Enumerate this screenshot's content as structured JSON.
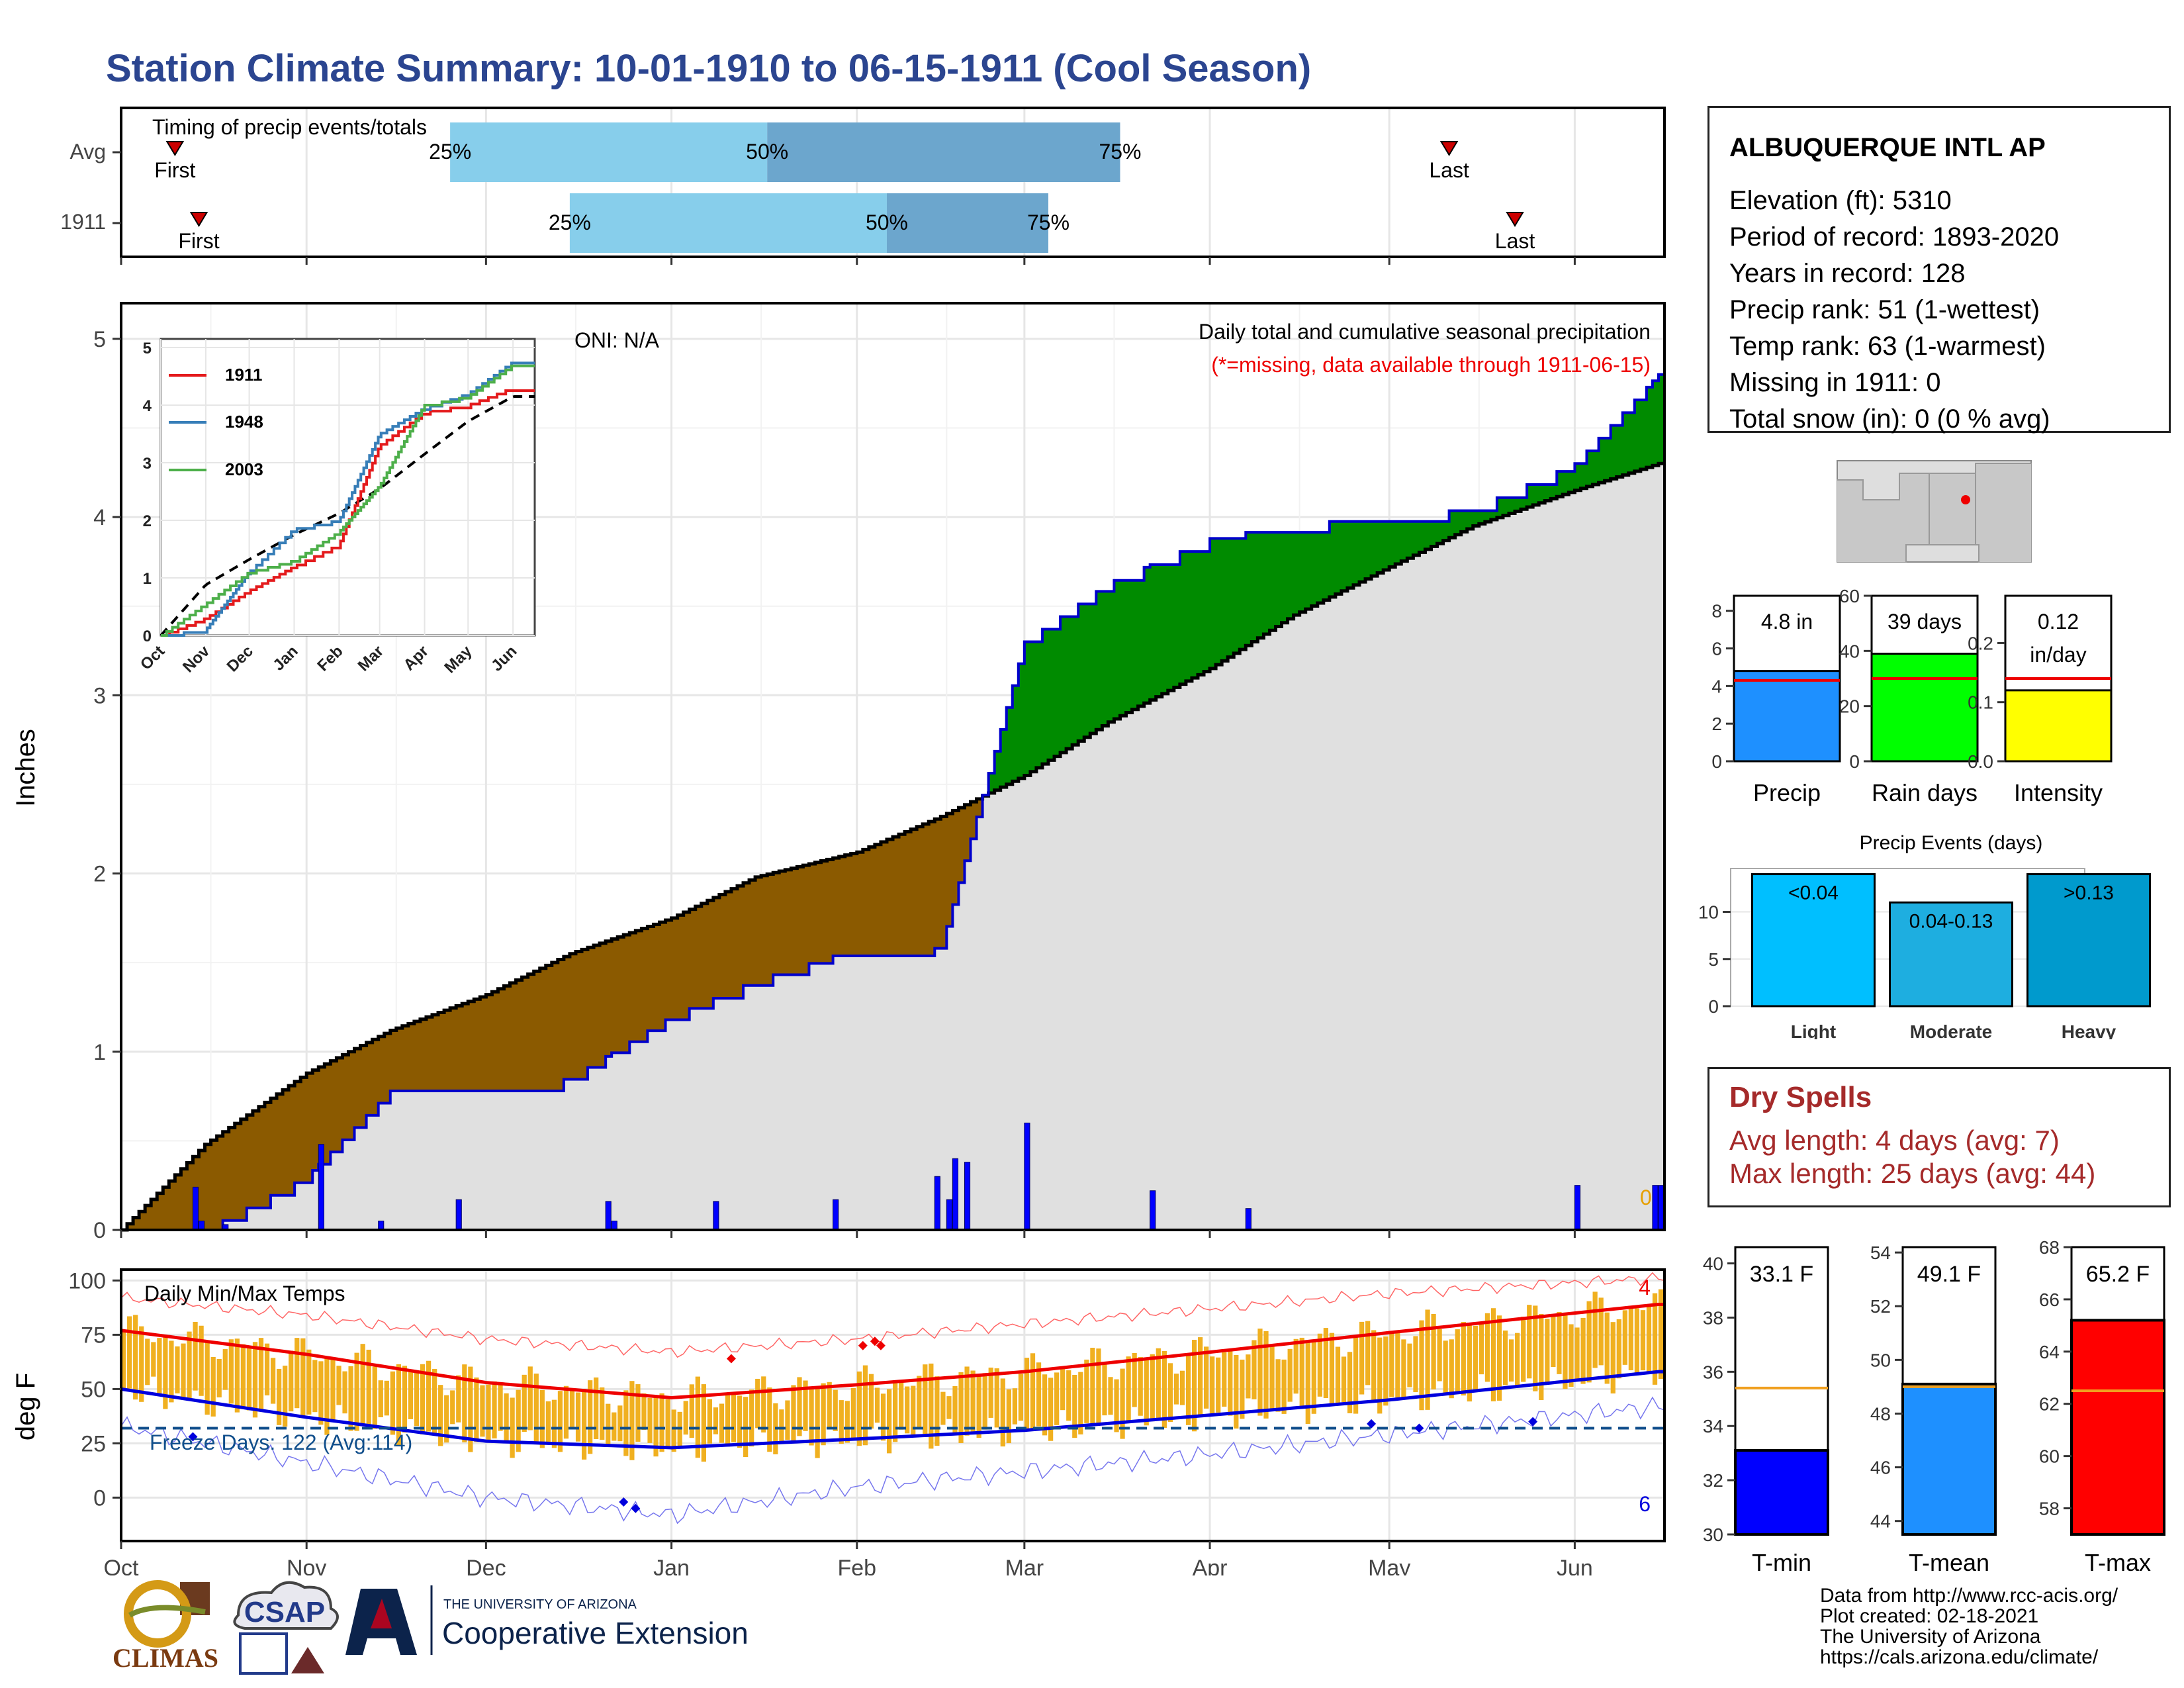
{
  "title": "Station Climate Summary: 10-01-1910 to 06-15-1911 (Cool Season)",
  "timing": {
    "title": "Timing of precip events/totals",
    "rows": [
      {
        "label": "Avg",
        "first_label": "First",
        "last_label": "Last",
        "p25": "25%",
        "p50": "50%",
        "p75": "75%",
        "first_day": 9,
        "p25_day": 55,
        "p50_day": 108,
        "p75_day": 167,
        "last_day": 222
      },
      {
        "label": "1911",
        "first_label": "First",
        "last_label": "Last",
        "p25": "25%",
        "p50": "50%",
        "p75": "75%",
        "first_day": 13,
        "p25_day": 75,
        "p50_day": 128,
        "p75_day": 155,
        "last_day": 233
      }
    ],
    "colors": {
      "light": "#87ceeb",
      "dark": "#6ca6cd",
      "marker": "#cc0000"
    }
  },
  "precip": {
    "ylabel": "Inches",
    "oni": "ONI: N/A",
    "caption": "Daily total and cumulative seasonal precipitation",
    "missing_note": "(*=missing, data available through 1911-06-15)",
    "missing_count": "0",
    "colors": {
      "deficit": "#8b5a00",
      "surplus": "#008b00",
      "normal_fill": "#e0e0e0",
      "obs_line": "#0000cc",
      "bars": "#0000ff"
    }
  },
  "inset": {
    "legend": [
      {
        "name": "1911",
        "color": "#e41a1c"
      },
      {
        "name": "1948",
        "color": "#377eb8"
      },
      {
        "name": "2003",
        "color": "#4daf4a"
      }
    ]
  },
  "temps": {
    "title": "Daily Min/Max Temps",
    "ylabel": "deg F",
    "freeze_text": "Freeze Days: 122 (Avg:114)",
    "record_high_count": "4",
    "record_low_count": "6",
    "freeze_threshold": 32
  },
  "months": [
    "Oct",
    "Nov",
    "Dec",
    "Jan",
    "Feb",
    "Mar",
    "Apr",
    "May",
    "Jun"
  ],
  "station": {
    "name": "ALBUQUERQUE INTL AP",
    "lines": [
      "Elevation (ft): 5310",
      "Period of record: 1893-2020",
      "Years in record: 128",
      "Precip rank: 51 (1-wettest)",
      "Temp rank: 63 (1-warmest)",
      "Missing in 1911: 0",
      "Total snow (in): 0 (0 % avg)"
    ]
  },
  "mini_charts": {
    "precip": {
      "xlabel": "Precip",
      "value_label": "4.8 in",
      "value": 4.8,
      "avg": 4.3,
      "ylim": [
        0,
        8.8
      ],
      "ticks": [
        0,
        2,
        4,
        6,
        8
      ],
      "color": "#1e90ff"
    },
    "rain_days": {
      "xlabel": "Rain days",
      "value_label": "39 days",
      "value": 39,
      "avg": 30,
      "ylim": [
        0,
        60
      ],
      "ticks": [
        0,
        20,
        40,
        60
      ],
      "color": "#00ff00"
    },
    "intensity": {
      "xlabel": "Intensity",
      "value_label": "0.12",
      "value_label2": "in/day",
      "value": 0.12,
      "avg": 0.14,
      "ylim": [
        0,
        0.28
      ],
      "ticks": [
        "0.0",
        "0.1",
        "0.2"
      ],
      "color": "#ffff00"
    }
  },
  "events": {
    "title": "Precip Events (days)",
    "bars": [
      {
        "name": "Light",
        "label": "<0.04",
        "value": 14,
        "color": "#00bfff"
      },
      {
        "name": "Moderate",
        "label": "0.04-0.13",
        "value": 11,
        "color": "#1eaee0"
      },
      {
        "name": "Heavy",
        "label": ">0.13",
        "value": 14,
        "color": "#009acd"
      }
    ],
    "ticks": [
      0,
      5,
      10
    ]
  },
  "dry_spells": {
    "title": "Dry Spells",
    "avg_line": "Avg length: 4 days (avg: 7)",
    "max_line": "Max length: 25 days (avg: 44)"
  },
  "temp_bars": [
    {
      "xlabel": "T-min",
      "value_label": "33.1 F",
      "value": 33.1,
      "avg": 35.4,
      "ylim": [
        30,
        40.6
      ],
      "ticks": [
        30,
        32,
        34,
        36,
        38,
        40
      ],
      "color": "#0000ff"
    },
    {
      "xlabel": "T-mean",
      "value_label": "49.1 F",
      "value": 49.1,
      "avg": 49.0,
      "ylim": [
        43.5,
        54.2
      ],
      "ticks": [
        44,
        46,
        48,
        50,
        52,
        54
      ],
      "color": "#1e90ff"
    },
    {
      "xlabel": "T-max",
      "value_label": "65.2 F",
      "value": 65.2,
      "avg": 62.5,
      "ylim": [
        57,
        68
      ],
      "ticks": [
        58,
        60,
        62,
        64,
        66,
        68
      ],
      "color": "#ff0000"
    }
  ],
  "logos": {
    "climas": "CLIMAS",
    "csap": "CSAP",
    "ua_small": "THE UNIVERSITY OF ARIZONA",
    "ua_big": "Cooperative Extension"
  },
  "credits": [
    "Data from http://www.rcc-acis.org/",
    "Plot created: 02-18-2021",
    "The University of Arizona",
    "https://cals.arizona.edu/climate/"
  ],
  "chart_data": [
    {
      "type": "bar",
      "title": "Timing of precip events/totals",
      "categories": [
        "Avg",
        "1911"
      ],
      "series": [
        {
          "name": "First",
          "values": [
            "Oct 10",
            "Oct 14"
          ]
        },
        {
          "name": "25%",
          "values": [
            "Nov 25",
            "Dec 15"
          ]
        },
        {
          "name": "50%",
          "values": [
            "Jan 17",
            "Feb 6"
          ]
        },
        {
          "name": "75%",
          "values": [
            "Mar 17",
            "Mar 5"
          ]
        },
        {
          "name": "Last",
          "values": [
            "May 12",
            "Jun 13"
          ]
        }
      ]
    },
    {
      "type": "area",
      "title": "Daily total and cumulative seasonal precipitation",
      "ylabel": "Inches",
      "ylim": [
        0,
        5.2
      ],
      "x": [
        "Oct 1",
        "Oct 15",
        "Nov 1",
        "Nov 15",
        "Dec 1",
        "Dec 15",
        "Jan 1",
        "Jan 15",
        "Feb 1",
        "Feb 15",
        "Mar 1",
        "Mar 15",
        "Apr 1",
        "Apr 15",
        "May 1",
        "May 15",
        "Jun 1",
        "Jun 15"
      ],
      "series": [
        {
          "name": "normal",
          "values": [
            0.0,
            0.48,
            0.88,
            1.12,
            1.32,
            1.55,
            1.75,
            1.98,
            2.12,
            2.32,
            2.55,
            2.85,
            3.15,
            3.45,
            3.72,
            3.95,
            4.15,
            4.3
          ]
        },
        {
          "name": "1911",
          "values": [
            0.0,
            0.0,
            0.3,
            0.78,
            0.78,
            0.85,
            1.2,
            1.4,
            1.58,
            1.58,
            3.3,
            3.63,
            3.88,
            3.96,
            4.0,
            4.05,
            4.3,
            4.8
          ]
        }
      ],
      "daily_precip": [
        {
          "x": "Oct 13",
          "value": 0.24
        },
        {
          "x": "Oct 14",
          "value": 0.05
        },
        {
          "x": "Oct 18",
          "value": 0.03
        },
        {
          "x": "Nov 3",
          "value": 0.48
        },
        {
          "x": "Nov 13",
          "value": 0.05
        },
        {
          "x": "Nov 26",
          "value": 0.17
        },
        {
          "x": "Dec 21",
          "value": 0.16
        },
        {
          "x": "Dec 22",
          "value": 0.05
        },
        {
          "x": "Jan 8",
          "value": 0.16
        },
        {
          "x": "Jan 28",
          "value": 0.17
        },
        {
          "x": "Feb 14",
          "value": 0.3
        },
        {
          "x": "Feb 16",
          "value": 0.17
        },
        {
          "x": "Feb 17",
          "value": 0.4
        },
        {
          "x": "Feb 19",
          "value": 0.38
        },
        {
          "x": "Mar 1",
          "value": 0.6
        },
        {
          "x": "Mar 22",
          "value": 0.22
        },
        {
          "x": "Apr 7",
          "value": 0.12
        },
        {
          "x": "Jun 1",
          "value": 0.25
        },
        {
          "x": "Jun 14",
          "value": 0.25
        },
        {
          "x": "Jun 15",
          "value": 0.25
        }
      ],
      "annotations": [
        "ONI: N/A",
        "(*=missing, data available through 1911-06-15)"
      ]
    },
    {
      "type": "line",
      "title": "Cumulative precipitation (inset)",
      "x": [
        "Oct",
        "Nov",
        "Dec",
        "Jan",
        "Feb",
        "Mar",
        "Apr",
        "May",
        "Jun"
      ],
      "ylim": [
        0,
        5.2
      ],
      "series": [
        {
          "name": "normal",
          "values": [
            0.0,
            0.88,
            1.32,
            1.75,
            2.12,
            2.55,
            3.15,
            3.72,
            4.15
          ]
        },
        {
          "name": "1911",
          "values": [
            0.0,
            0.3,
            0.78,
            1.2,
            1.58,
            3.3,
            3.88,
            4.0,
            4.3
          ]
        },
        {
          "name": "1948",
          "values": [
            0.0,
            0.1,
            1.1,
            1.85,
            2.0,
            3.5,
            3.95,
            4.2,
            4.75
          ]
        },
        {
          "name": "2003",
          "values": [
            0.0,
            0.55,
            1.1,
            1.3,
            1.8,
            2.6,
            4.0,
            4.15,
            4.7
          ]
        }
      ]
    },
    {
      "type": "line",
      "title": "Daily Min/Max Temps",
      "ylabel": "deg F",
      "ylim": [
        -20,
        105
      ],
      "x": [
        "Oct 1",
        "Nov 1",
        "Dec 1",
        "Jan 1",
        "Feb 1",
        "Mar 1",
        "Apr 1",
        "May 1",
        "Jun 1",
        "Jun 15"
      ],
      "series": [
        {
          "name": "normal max",
          "values": [
            77,
            66,
            53,
            46,
            52,
            58,
            67,
            76,
            85,
            89
          ]
        },
        {
          "name": "normal min",
          "values": [
            50,
            37,
            26,
            23,
            27,
            31,
            38,
            45,
            54,
            58
          ]
        },
        {
          "name": "record max",
          "values": [
            92,
            84,
            73,
            67,
            73,
            80,
            87,
            94,
            99,
            101
          ]
        },
        {
          "name": "record min",
          "values": [
            33,
            16,
            0,
            -8,
            5,
            12,
            20,
            29,
            38,
            42
          ]
        }
      ],
      "threshold": 32,
      "annotations": [
        "Freeze Days: 122 (Avg:114)",
        "4",
        "6"
      ]
    },
    {
      "type": "bar",
      "categories": [
        "Precip",
        "Rain days",
        "Intensity"
      ],
      "values": [
        4.8,
        39,
        0.12
      ],
      "labels": [
        "4.8 in",
        "39 days",
        "0.12 in/day"
      ]
    },
    {
      "type": "bar",
      "title": "Precip Events (days)",
      "categories": [
        "Light",
        "Moderate",
        "Heavy"
      ],
      "values": [
        14,
        11,
        14
      ],
      "labels": [
        "<0.04",
        "0.04-0.13",
        ">0.13"
      ]
    },
    {
      "type": "bar",
      "categories": [
        "T-min",
        "T-mean",
        "T-max"
      ],
      "values": [
        33.1,
        49.1,
        65.2
      ],
      "labels": [
        "33.1 F",
        "49.1 F",
        "65.2 F"
      ]
    }
  ]
}
